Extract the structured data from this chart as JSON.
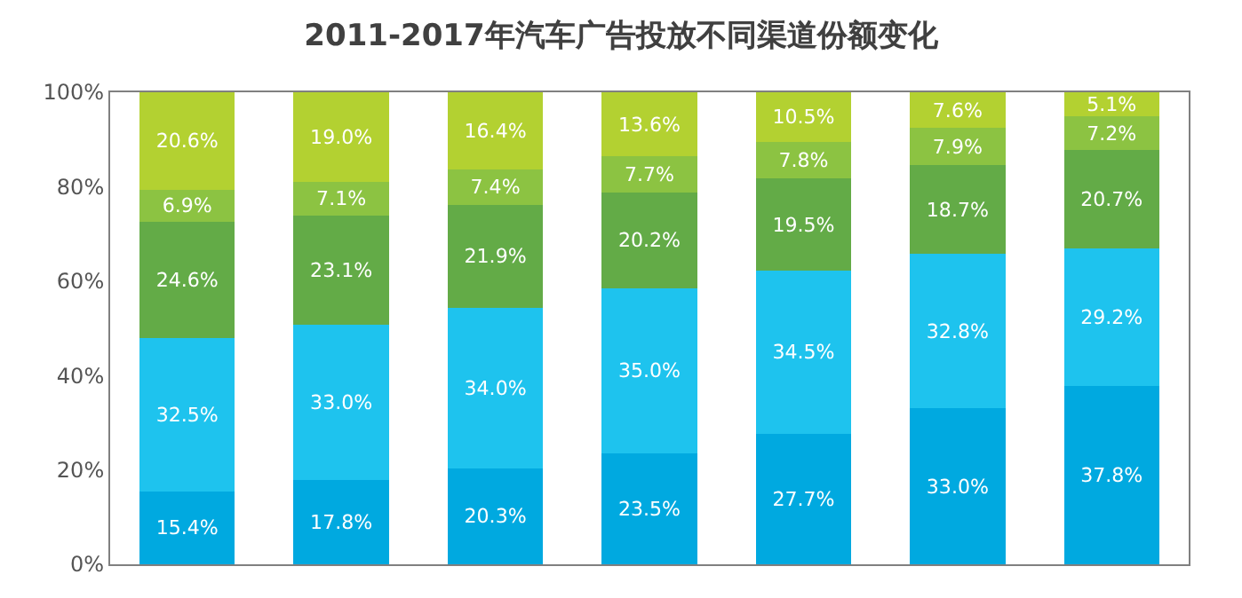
{
  "chart_data": {
    "type": "bar",
    "stacked": true,
    "title": "2011-2017年汽车广告投放不同渠道份额变化",
    "categories": [
      null,
      null,
      null,
      null,
      null,
      null,
      null
    ],
    "series": [
      {
        "color": "#00a9e0",
        "values": [
          15.4,
          17.8,
          20.3,
          23.5,
          27.7,
          33.0,
          37.8
        ],
        "value_labels": [
          "15.4%",
          "17.8%",
          "20.3%",
          "23.5%",
          "27.7%",
          "33.0%",
          "37.8%"
        ]
      },
      {
        "color": "#1ec3ee",
        "values": [
          32.5,
          33.0,
          34.0,
          35.0,
          34.5,
          32.8,
          29.2
        ],
        "value_labels": [
          "32.5%",
          "33.0%",
          "34.0%",
          "35.0%",
          "34.5%",
          "32.8%",
          "29.2%"
        ]
      },
      {
        "color": "#63ab47",
        "values": [
          24.6,
          23.1,
          21.9,
          20.2,
          19.5,
          18.7,
          20.7
        ],
        "value_labels": [
          "24.6%",
          "23.1%",
          "21.9%",
          "20.2%",
          "19.5%",
          "18.7%",
          "20.7%"
        ]
      },
      {
        "color": "#8cc342",
        "values": [
          6.9,
          7.1,
          7.4,
          7.7,
          7.8,
          7.9,
          7.2
        ],
        "value_labels": [
          "6.9%",
          "7.1%",
          "7.4%",
          "7.7%",
          "7.8%",
          "7.9%",
          "7.2%"
        ]
      },
      {
        "color": "#b3d131",
        "values": [
          20.6,
          19.0,
          16.4,
          13.6,
          10.5,
          7.6,
          5.1
        ],
        "value_labels": [
          "20.6%",
          "19.0%",
          "16.4%",
          "13.6%",
          "10.5%",
          "7.6%",
          "5.1%"
        ]
      }
    ],
    "ylim": [
      0,
      100
    ],
    "yticks": [
      {
        "value": 0,
        "label": "0%"
      },
      {
        "value": 20,
        "label": "20%"
      },
      {
        "value": 40,
        "label": "40%"
      },
      {
        "value": 60,
        "label": "60%"
      },
      {
        "value": 80,
        "label": "80%"
      },
      {
        "value": 100,
        "label": "100%"
      }
    ],
    "tick_labels": "y"
  }
}
